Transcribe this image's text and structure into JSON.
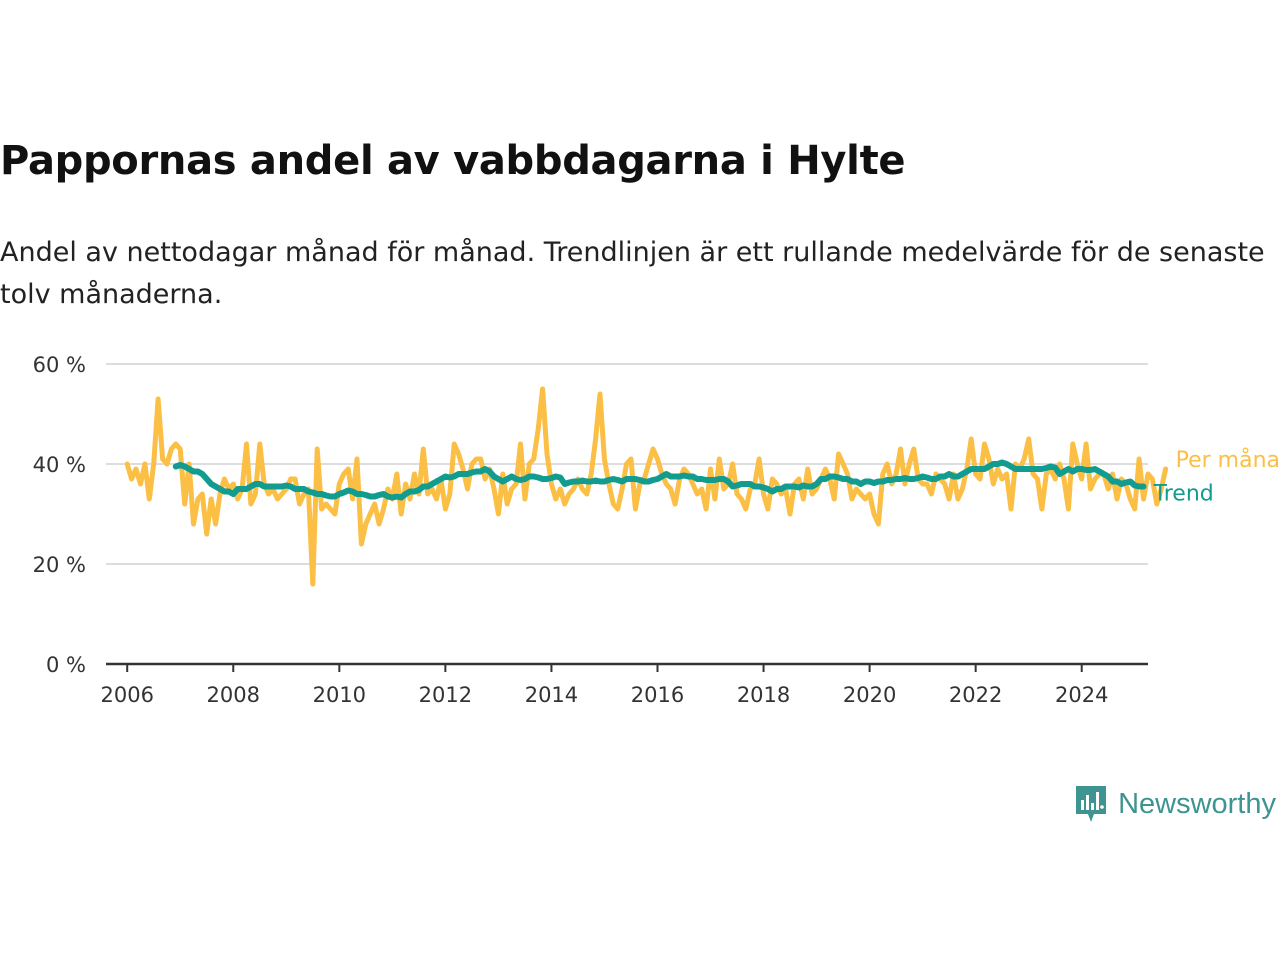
{
  "title": "Pappornas andel av vabbdagarna i Hylte",
  "subtitle": "Andel av nettodagar månad för månad. Trendlinjen är ett rullande medelvärde för de senaste tolv månaderna.",
  "brand": {
    "name": "Newsworthy",
    "icon": "newsworthy-logo-icon",
    "color": "#3d9490"
  },
  "colors": {
    "monthly": "#fbbf45",
    "trend": "#129b8f",
    "grid": "#dddddd",
    "axis": "#333333"
  },
  "chart_data": {
    "type": "line",
    "title": "Pappornas andel av vabbdagarna i Hylte",
    "xlabel": "",
    "ylabel": "",
    "xlim": [
      2005.6,
      2025.25
    ],
    "ylim": [
      0,
      60
    ],
    "x_ticks": [
      2006,
      2008,
      2010,
      2012,
      2014,
      2016,
      2018,
      2020,
      2022,
      2024
    ],
    "x_tick_labels": [
      "2006",
      "2008",
      "2010",
      "2012",
      "2014",
      "2016",
      "2018",
      "2020",
      "2022",
      "2024"
    ],
    "y_ticks": [
      0,
      20,
      40,
      60
    ],
    "y_tick_labels": [
      "0 %",
      "20 %",
      "40 %",
      "60 %"
    ],
    "grid": true,
    "series": [
      {
        "name": "Per månad",
        "x_start": 2006.0,
        "x_step": 0.08333,
        "values": [
          40,
          37,
          39,
          36,
          40,
          33,
          40,
          53,
          41,
          40,
          43,
          44,
          43,
          32,
          40,
          28,
          33,
          34,
          26,
          33,
          28,
          34,
          37,
          35,
          36,
          33,
          35,
          44,
          32,
          34,
          44,
          36,
          34,
          35,
          33,
          34,
          35,
          37,
          37,
          32,
          34,
          35,
          16,
          43,
          31,
          32,
          31,
          30,
          36,
          38,
          39,
          33,
          41,
          24,
          28,
          30,
          32,
          28,
          31,
          35,
          33,
          38,
          30,
          36,
          33,
          38,
          34,
          43,
          34,
          35,
          33,
          37,
          31,
          34,
          44,
          42,
          39,
          35,
          40,
          41,
          41,
          37,
          39,
          35,
          30,
          38,
          32,
          35,
          36,
          44,
          33,
          40,
          41,
          47,
          55,
          42,
          36,
          33,
          35,
          32,
          34,
          35,
          37,
          35,
          34,
          38,
          45,
          54,
          41,
          36,
          32,
          31,
          35,
          40,
          41,
          31,
          36,
          37,
          40,
          43,
          41,
          38,
          36,
          35,
          32,
          37,
          39,
          38,
          36,
          34,
          35,
          31,
          39,
          33,
          41,
          35,
          36,
          40,
          34,
          33,
          31,
          35,
          36,
          41,
          34,
          31,
          37,
          36,
          34,
          35,
          30,
          36,
          37,
          33,
          39,
          34,
          35,
          37,
          39,
          37,
          33,
          42,
          40,
          38,
          33,
          35,
          34,
          33,
          34,
          30,
          28,
          38,
          40,
          36,
          38,
          43,
          36,
          40,
          43,
          37,
          36,
          36,
          34,
          38,
          37,
          36,
          33,
          38,
          33,
          35,
          39,
          45,
          38,
          37,
          44,
          41,
          36,
          39,
          37,
          38,
          31,
          40,
          39,
          41,
          45,
          38,
          37,
          31,
          38,
          39,
          37,
          40,
          37,
          31,
          44,
          40,
          37,
          44,
          35,
          37,
          38,
          38,
          35,
          38,
          33,
          37,
          36,
          33,
          31,
          41,
          33,
          38,
          37,
          32,
          35,
          39
        ]
      },
      {
        "name": "Trend",
        "x_start": 2006.9167,
        "x_step": 0.08333,
        "values": [
          39.5,
          39.8,
          39.5,
          39,
          38.5,
          38.5,
          38,
          37,
          36,
          35.5,
          35,
          34.5,
          34.5,
          34,
          35,
          35,
          35,
          35.5,
          36,
          36,
          35.5,
          35.5,
          35.5,
          35.5,
          35.5,
          35.7,
          35.5,
          35,
          35,
          35,
          34.5,
          34.3,
          34,
          34,
          33.7,
          33.5,
          33.5,
          34,
          34.3,
          34.7,
          34.5,
          34,
          34,
          33.8,
          33.5,
          33.5,
          33.8,
          34,
          33.5,
          33.3,
          33.5,
          33.3,
          34,
          34.5,
          34.5,
          34.8,
          35.5,
          35.5,
          36,
          36.5,
          37,
          37.5,
          37.3,
          37.5,
          38,
          38,
          38,
          38.3,
          38.5,
          38.5,
          39,
          38.5,
          37.5,
          37,
          36.5,
          37,
          37.5,
          37,
          36.8,
          37,
          37.5,
          37.5,
          37.3,
          37,
          37,
          37.2,
          37.5,
          37.3,
          36,
          36.3,
          36.5,
          36.5,
          36.7,
          36.5,
          36.5,
          36.7,
          36.5,
          36.5,
          36.8,
          37,
          36.8,
          36.5,
          37,
          37,
          37,
          36.8,
          36.5,
          36.5,
          36.8,
          37,
          37.5,
          38,
          37.5,
          37.5,
          37.5,
          37.7,
          37.5,
          37.5,
          37,
          37,
          36.8,
          36.8,
          36.8,
          37,
          37,
          36.5,
          35.5,
          35.7,
          36,
          36,
          36,
          35.5,
          35.5,
          35.3,
          35,
          34.5,
          35,
          35,
          35.5,
          35.5,
          35.5,
          35.3,
          35.7,
          35.5,
          35.5,
          36,
          37,
          37,
          37.5,
          37.5,
          37.3,
          37,
          37,
          36.5,
          36.5,
          36,
          36.5,
          36.5,
          36.2,
          36.5,
          36.5,
          36.8,
          36.8,
          37,
          37,
          37.2,
          37,
          37,
          37.2,
          37.5,
          37.3,
          37,
          37,
          37.5,
          37.5,
          38,
          37.5,
          37.5,
          38,
          38.5,
          39,
          39,
          39,
          39,
          39.5,
          40,
          40,
          40.3,
          40,
          39.5,
          39,
          39,
          39,
          39,
          39,
          39,
          39,
          39.2,
          39.5,
          39.3,
          38,
          38.5,
          39,
          38.5,
          39,
          39,
          38.8,
          38.8,
          39,
          38.5,
          38,
          37.5,
          36.5,
          36.5,
          36,
          36.3,
          36.5,
          35.7,
          35.5,
          35.5
        ]
      }
    ]
  }
}
